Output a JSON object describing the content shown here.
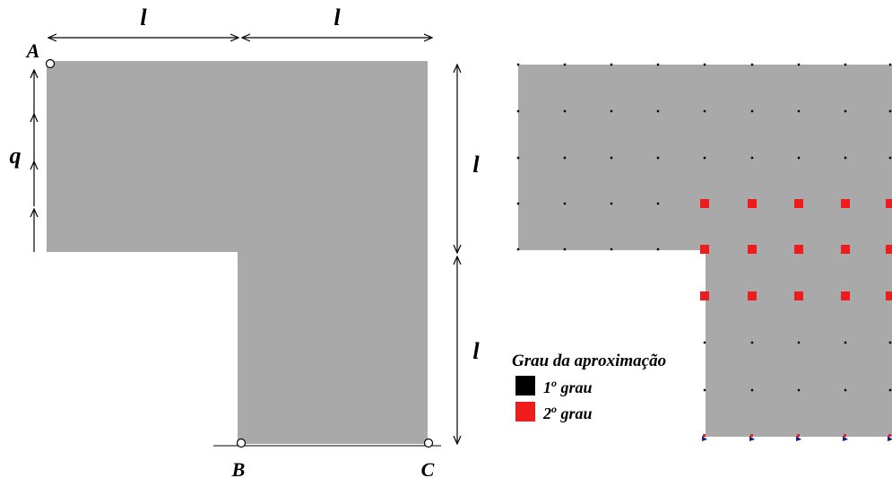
{
  "left_figure": {
    "dim_top_left": "l",
    "dim_top_right": "l",
    "dim_right_top": "l",
    "dim_right_bottom": "l",
    "load_label": "q",
    "point_a": "A",
    "point_b": "B",
    "point_c": "C"
  },
  "legend": {
    "title": "Grau da aproximação",
    "items": [
      {
        "label": "1",
        "sup": "o",
        "suffix": " grau",
        "color": "#000000"
      },
      {
        "label": "2",
        "sup": "o",
        "suffix": " grau",
        "color": "#ee1c1c"
      }
    ]
  },
  "colors": {
    "plate": "#a9a9a9",
    "first_degree": "#000000",
    "second_degree": "#ee1c1c",
    "support": "#1a237e"
  }
}
